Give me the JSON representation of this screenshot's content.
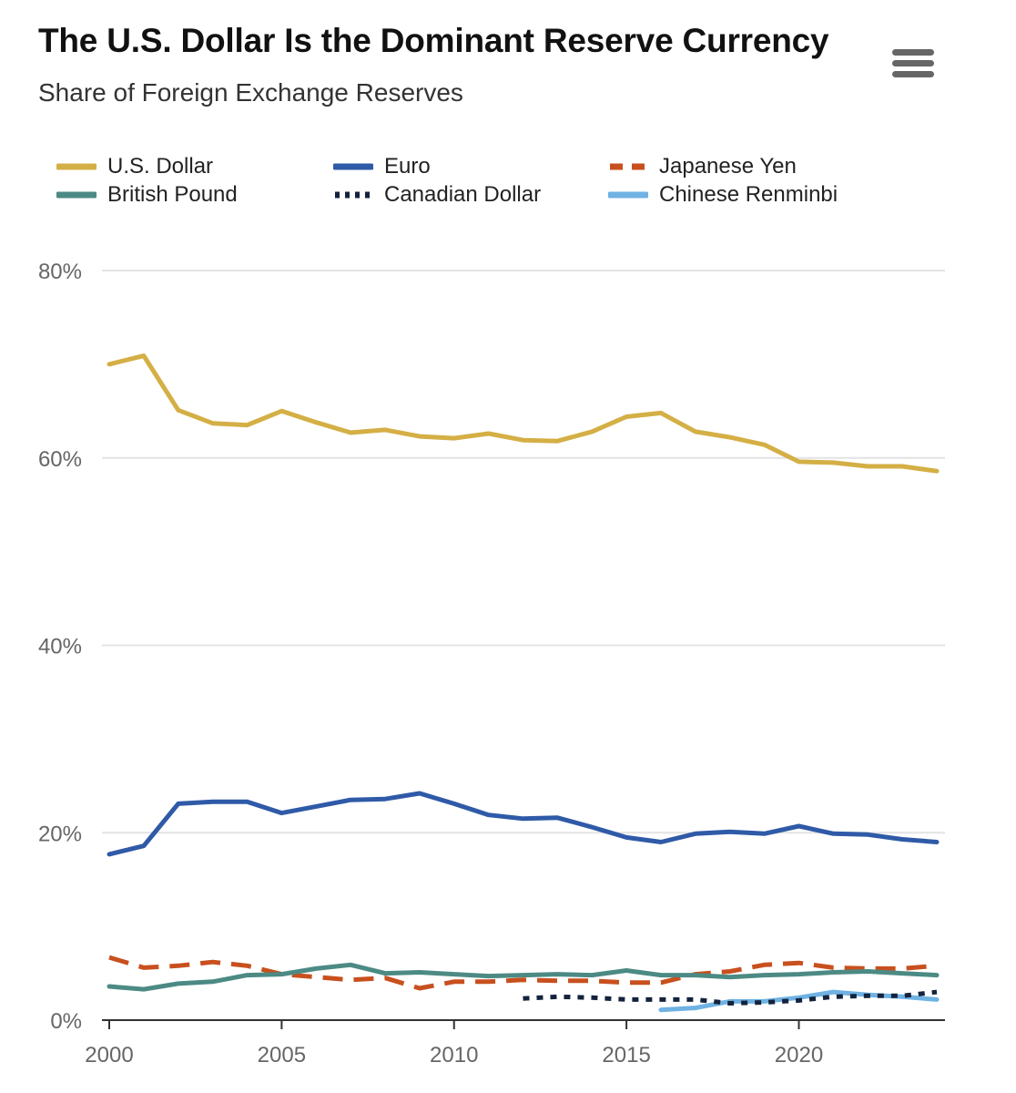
{
  "header": {
    "title": "The U.S. Dollar Is the Dominant Reserve Currency",
    "subtitle": "Share of Foreign Exchange Reserves",
    "menu_icon": "hamburger-menu-icon"
  },
  "chart_data": {
    "type": "line",
    "title": "The U.S. Dollar Is the Dominant Reserve Currency",
    "subtitle": "Share of Foreign Exchange Reserves",
    "xlim": [
      2000,
      2024
    ],
    "ylim": [
      0,
      80
    ],
    "x_ticks": [
      "2000",
      "2005",
      "2010",
      "2015",
      "2020"
    ],
    "y_ticks": [
      "0%",
      "20%",
      "40%",
      "60%",
      "80%"
    ],
    "grid": true,
    "legend": "top",
    "series": [
      {
        "name": "U.S. Dollar",
        "color": "#d4af45",
        "dash": "solid",
        "x": [
          2000,
          2001,
          2002,
          2003,
          2004,
          2005,
          2006,
          2007,
          2008,
          2009,
          2010,
          2011,
          2012,
          2013,
          2014,
          2015,
          2016,
          2017,
          2018,
          2019,
          2020,
          2021,
          2022,
          2023,
          2024
        ],
        "y": [
          70.0,
          70.9,
          65.1,
          63.7,
          63.5,
          65.0,
          63.8,
          62.7,
          63.0,
          62.3,
          62.1,
          62.6,
          61.9,
          61.8,
          62.8,
          64.4,
          64.8,
          62.8,
          62.2,
          61.4,
          59.6,
          59.5,
          59.1,
          59.1,
          58.6
        ]
      },
      {
        "name": "Euro",
        "color": "#2f5aa7",
        "dash": "solid",
        "x": [
          2000,
          2001,
          2002,
          2003,
          2004,
          2005,
          2006,
          2007,
          2008,
          2009,
          2010,
          2011,
          2012,
          2013,
          2014,
          2015,
          2016,
          2017,
          2018,
          2019,
          2020,
          2021,
          2022,
          2023,
          2024
        ],
        "y": [
          17.7,
          18.6,
          23.1,
          23.3,
          23.3,
          22.1,
          22.8,
          23.5,
          23.6,
          24.2,
          23.1,
          21.9,
          21.5,
          21.6,
          20.6,
          19.5,
          19.0,
          19.9,
          20.1,
          19.9,
          20.7,
          19.9,
          19.8,
          19.3,
          19.0
        ]
      },
      {
        "name": "Japanese Yen",
        "color": "#c8501e",
        "dash": "dashed",
        "x": [
          2000,
          2001,
          2002,
          2003,
          2004,
          2005,
          2006,
          2007,
          2008,
          2009,
          2010,
          2011,
          2012,
          2013,
          2014,
          2015,
          2016,
          2017,
          2018,
          2019,
          2020,
          2021,
          2022,
          2023,
          2024
        ],
        "y": [
          6.7,
          5.6,
          5.8,
          6.2,
          5.8,
          4.9,
          4.6,
          4.3,
          4.5,
          3.4,
          4.1,
          4.1,
          4.3,
          4.2,
          4.2,
          4.0,
          4.0,
          4.9,
          5.2,
          5.9,
          6.1,
          5.6,
          5.5,
          5.5,
          5.8
        ]
      },
      {
        "name": "British Pound",
        "color": "#4c8a84",
        "dash": "solid",
        "x": [
          2000,
          2001,
          2002,
          2003,
          2004,
          2005,
          2006,
          2007,
          2008,
          2009,
          2010,
          2011,
          2012,
          2013,
          2014,
          2015,
          2016,
          2017,
          2018,
          2019,
          2020,
          2021,
          2022,
          2023,
          2024
        ],
        "y": [
          3.6,
          3.3,
          3.9,
          4.1,
          4.8,
          4.9,
          5.5,
          5.9,
          5.0,
          5.1,
          4.9,
          4.7,
          4.8,
          4.9,
          4.8,
          5.3,
          4.8,
          4.8,
          4.6,
          4.8,
          4.9,
          5.1,
          5.2,
          5.0,
          4.8
        ]
      },
      {
        "name": "Canadian Dollar",
        "color": "#14233d",
        "dash": "dotted",
        "x": [
          2012,
          2013,
          2014,
          2015,
          2016,
          2017,
          2018,
          2019,
          2020,
          2021,
          2022,
          2023,
          2024
        ],
        "y": [
          2.3,
          2.5,
          2.4,
          2.2,
          2.2,
          2.2,
          1.8,
          1.9,
          2.1,
          2.5,
          2.6,
          2.6,
          3.0
        ]
      },
      {
        "name": "Chinese Renminbi",
        "color": "#6fb2e3",
        "dash": "solid",
        "x": [
          2016,
          2017,
          2018,
          2019,
          2020,
          2021,
          2022,
          2023,
          2024
        ],
        "y": [
          1.1,
          1.3,
          2.0,
          2.0,
          2.4,
          3.0,
          2.7,
          2.5,
          2.2
        ]
      }
    ]
  }
}
